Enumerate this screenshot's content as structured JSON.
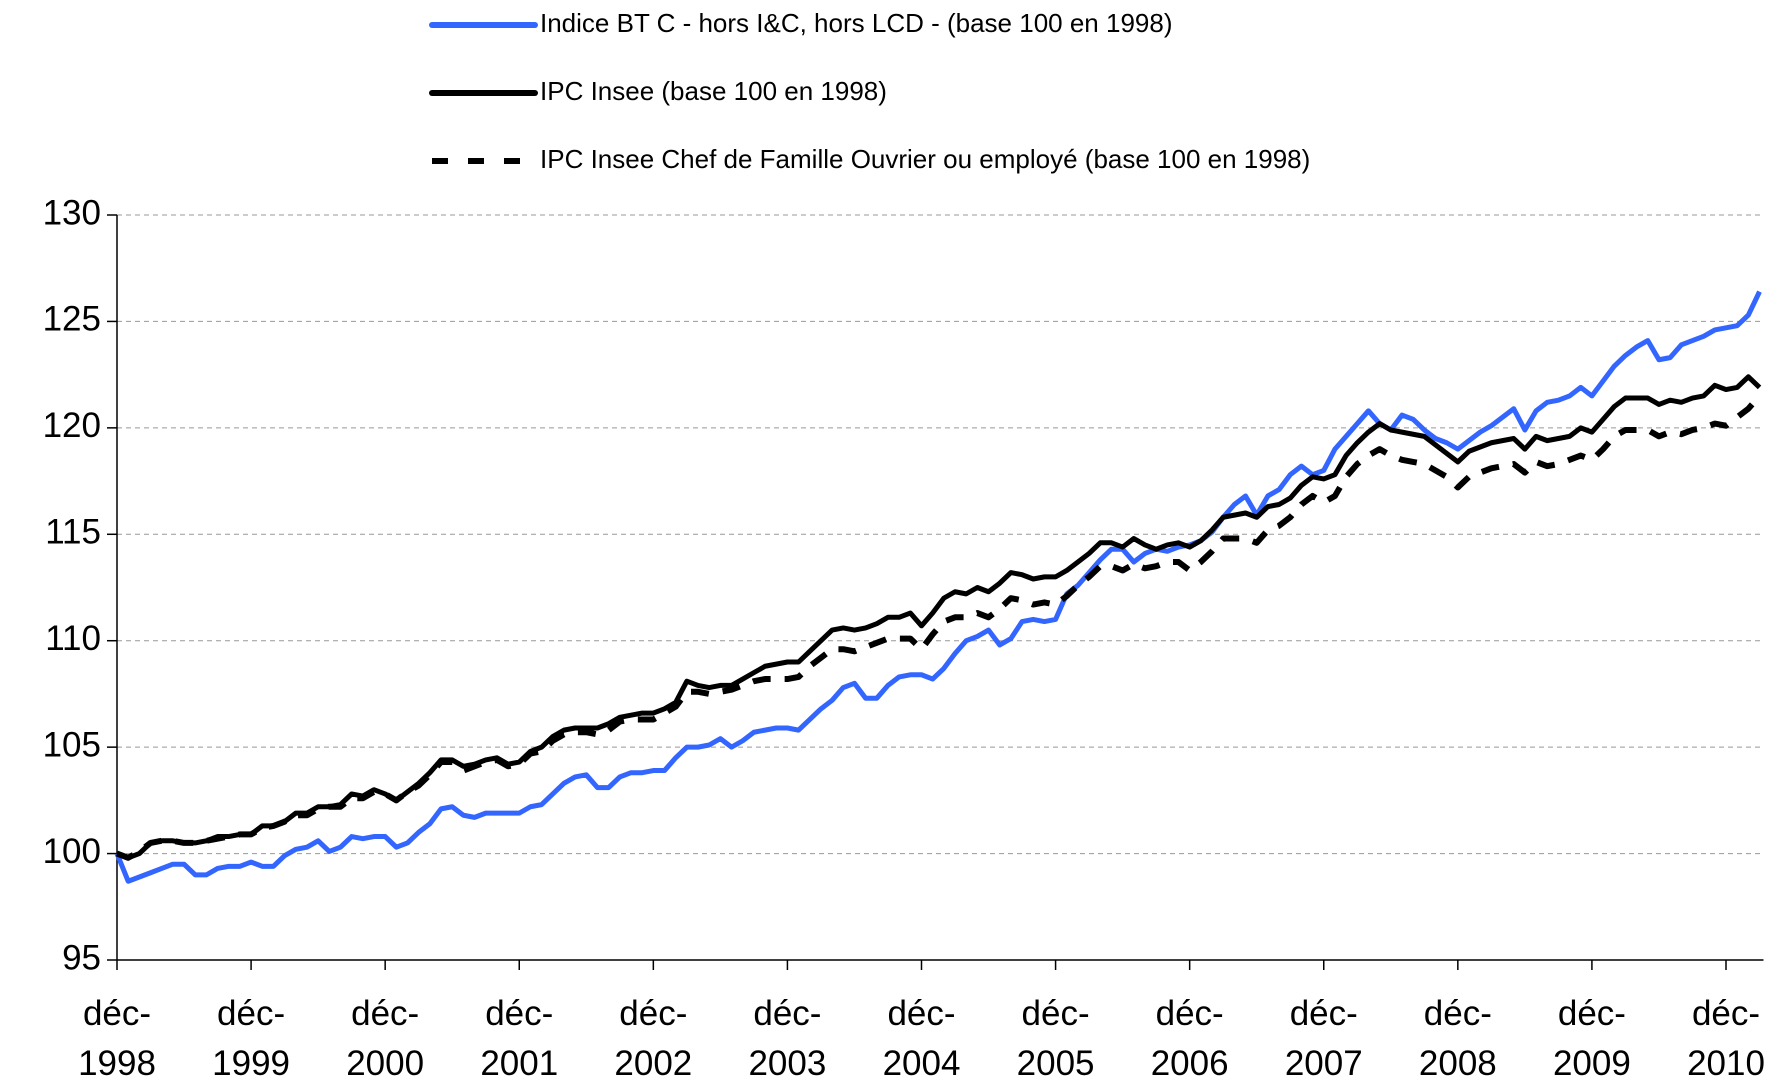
{
  "chart_data": {
    "type": "line",
    "categories": [
      "déc-1998",
      null,
      null,
      null,
      null,
      null,
      null,
      null,
      null,
      null,
      null,
      null,
      "déc-1999",
      null,
      null,
      null,
      null,
      null,
      null,
      null,
      null,
      null,
      null,
      null,
      "déc-2000",
      null,
      null,
      null,
      null,
      null,
      null,
      null,
      null,
      null,
      null,
      null,
      "déc-2001",
      null,
      null,
      null,
      null,
      null,
      null,
      null,
      null,
      null,
      null,
      null,
      "déc-2002",
      null,
      null,
      null,
      null,
      null,
      null,
      null,
      null,
      null,
      null,
      null,
      "déc-2003",
      null,
      null,
      null,
      null,
      null,
      null,
      null,
      null,
      null,
      null,
      null,
      "déc-2004",
      null,
      null,
      null,
      null,
      null,
      null,
      null,
      null,
      null,
      null,
      null,
      "déc-2005",
      null,
      null,
      null,
      null,
      null,
      null,
      null,
      null,
      null,
      null,
      null,
      "déc-2006",
      null,
      null,
      null,
      null,
      null,
      null,
      null,
      null,
      null,
      null,
      null,
      "déc-2007",
      null,
      null,
      null,
      null,
      null,
      null,
      null,
      null,
      null,
      null,
      null,
      "déc-2008",
      null,
      null,
      null,
      null,
      null,
      null,
      null,
      null,
      null,
      null,
      null,
      "déc-2009",
      null,
      null,
      null,
      null,
      null,
      null,
      null,
      null,
      null,
      null,
      null,
      "déc-2010",
      null,
      null,
      null
    ],
    "series": [
      {
        "name": "Indice BT C  - hors I&C, hors LCD - (base 100 en 1998)",
        "color": "#3366ff",
        "dashed": false,
        "values": [
          100,
          98.7,
          98.9,
          99.1,
          99.3,
          99.5,
          99.5,
          99.0,
          99.0,
          99.3,
          99.4,
          99.4,
          99.6,
          99.4,
          99.4,
          99.9,
          100.2,
          100.3,
          100.6,
          100.1,
          100.3,
          100.8,
          100.7,
          100.8,
          100.8,
          100.3,
          100.5,
          101.0,
          101.4,
          102.1,
          102.2,
          101.8,
          101.7,
          101.9,
          101.9,
          101.9,
          101.9,
          102.2,
          102.3,
          102.8,
          103.3,
          103.6,
          103.7,
          103.1,
          103.1,
          103.6,
          103.8,
          103.8,
          103.9,
          103.9,
          104.5,
          105.0,
          105.0,
          105.1,
          105.4,
          105.0,
          105.3,
          105.7,
          105.8,
          105.9,
          105.9,
          105.8,
          106.3,
          106.8,
          107.2,
          107.8,
          108.0,
          107.3,
          107.3,
          107.9,
          108.3,
          108.4,
          108.4,
          108.2,
          108.7,
          109.4,
          110.0,
          110.2,
          110.5,
          109.8,
          110.1,
          110.9,
          111.0,
          110.9,
          111.0,
          112.2,
          112.6,
          113.2,
          113.8,
          114.3,
          114.3,
          113.7,
          114.1,
          114.3,
          114.2,
          114.4,
          114.5,
          114.7,
          115.1,
          115.8,
          116.4,
          116.8,
          115.9,
          116.8,
          117.1,
          117.8,
          118.2,
          117.8,
          118.0,
          119.0,
          119.6,
          120.2,
          120.8,
          120.2,
          119.9,
          120.6,
          120.4,
          119.9,
          119.5,
          119.3,
          119.0,
          119.4,
          119.8,
          120.1,
          120.5,
          120.9,
          119.9,
          120.8,
          121.2,
          121.3,
          121.5,
          121.9,
          121.5,
          122.2,
          122.9,
          123.4,
          123.8,
          124.1,
          123.2,
          123.3,
          123.9,
          124.1,
          124.3,
          124.6,
          124.7,
          124.8,
          125.3,
          126.4
        ]
      },
      {
        "name": "IPC Insee (base 100 en 1998)",
        "color": "#000000",
        "dashed": false,
        "values": [
          100,
          99.8,
          100.0,
          100.5,
          100.6,
          100.6,
          100.5,
          100.5,
          100.6,
          100.8,
          100.8,
          100.9,
          100.9,
          101.3,
          101.3,
          101.5,
          101.9,
          101.9,
          102.2,
          102.2,
          102.3,
          102.8,
          102.7,
          103.0,
          102.8,
          102.5,
          102.9,
          103.3,
          103.8,
          104.4,
          104.4,
          104.1,
          104.2,
          104.4,
          104.5,
          104.2,
          104.3,
          104.8,
          105.0,
          105.5,
          105.8,
          105.9,
          105.9,
          105.9,
          106.1,
          106.4,
          106.5,
          106.6,
          106.6,
          106.8,
          107.1,
          108.1,
          107.9,
          107.8,
          107.9,
          107.9,
          108.2,
          108.5,
          108.8,
          108.9,
          109.0,
          109.0,
          109.5,
          110.0,
          110.5,
          110.6,
          110.5,
          110.6,
          110.8,
          111.1,
          111.1,
          111.3,
          110.7,
          111.3,
          112.0,
          112.3,
          112.2,
          112.5,
          112.3,
          112.7,
          113.2,
          113.1,
          112.9,
          113.0,
          113.0,
          113.3,
          113.7,
          114.1,
          114.6,
          114.6,
          114.4,
          114.8,
          114.5,
          114.3,
          114.5,
          114.6,
          114.4,
          114.7,
          115.2,
          115.8,
          115.9,
          116.0,
          115.8,
          116.3,
          116.4,
          116.7,
          117.3,
          117.7,
          117.6,
          117.8,
          118.7,
          119.3,
          119.8,
          120.2,
          119.9,
          119.8,
          119.7,
          119.6,
          119.2,
          118.8,
          118.4,
          118.9,
          119.1,
          119.3,
          119.4,
          119.5,
          119.0,
          119.6,
          119.4,
          119.5,
          119.6,
          120.0,
          119.8,
          120.4,
          121.0,
          121.4,
          121.4,
          121.4,
          121.1,
          121.3,
          121.2,
          121.4,
          121.5,
          122.0,
          121.8,
          121.9,
          122.4,
          121.9
        ]
      },
      {
        "name": "IPC Insee Chef de Famille Ouvrier ou employé (base 100 en 1998)",
        "color": "#000000",
        "dashed": true,
        "values": [
          100,
          99.8,
          100.1,
          100.5,
          100.6,
          100.6,
          100.5,
          100.5,
          100.6,
          100.7,
          100.8,
          100.9,
          100.9,
          101.2,
          101.3,
          101.5,
          101.8,
          101.8,
          102.1,
          102.2,
          102.2,
          102.6,
          102.6,
          102.9,
          102.8,
          102.5,
          102.9,
          103.2,
          103.7,
          104.3,
          104.3,
          103.9,
          104.1,
          104.3,
          104.4,
          104.1,
          104.2,
          104.7,
          104.8,
          105.3,
          105.6,
          105.7,
          105.7,
          105.6,
          105.8,
          106.2,
          106.3,
          106.3,
          106.3,
          106.6,
          106.9,
          107.6,
          107.6,
          107.5,
          107.6,
          107.7,
          107.9,
          108.1,
          108.2,
          108.2,
          108.2,
          108.3,
          108.8,
          109.2,
          109.6,
          109.6,
          109.5,
          109.7,
          109.9,
          110.1,
          110.1,
          110.1,
          109.6,
          110.3,
          110.9,
          111.1,
          111.1,
          111.3,
          111.1,
          111.5,
          112.0,
          111.9,
          111.7,
          111.8,
          111.7,
          112.1,
          112.6,
          113.0,
          113.5,
          113.5,
          113.3,
          113.6,
          113.4,
          113.5,
          113.7,
          113.7,
          113.3,
          113.7,
          114.2,
          114.8,
          114.8,
          114.8,
          114.6,
          115.2,
          115.4,
          115.8,
          116.4,
          116.8,
          116.5,
          116.8,
          117.7,
          118.3,
          118.7,
          119.0,
          118.7,
          118.5,
          118.4,
          118.3,
          118.0,
          117.7,
          117.2,
          117.7,
          117.9,
          118.1,
          118.2,
          118.3,
          117.9,
          118.4,
          118.2,
          118.3,
          118.5,
          118.7,
          118.5,
          119.0,
          119.6,
          119.9,
          119.9,
          119.9,
          119.6,
          119.8,
          119.7,
          119.9,
          120.0,
          120.2,
          120.1,
          120.5,
          120.9,
          121.5
        ]
      }
    ],
    "ylim": [
      95,
      130
    ],
    "yticks": [
      95,
      100,
      105,
      110,
      115,
      120,
      125,
      130
    ],
    "grid": true,
    "legend": "top"
  }
}
